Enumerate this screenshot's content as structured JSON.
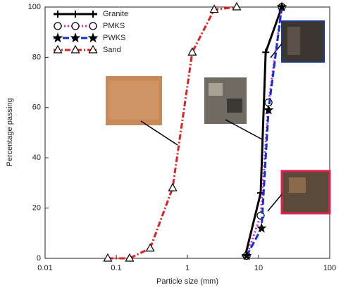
{
  "chart_data": {
    "type": "line",
    "x_label": "Particle size (mm)",
    "y_label": "Percentage passing",
    "xscale": "log",
    "xlim": [
      0.01,
      100
    ],
    "xticks": [
      0.01,
      0.1,
      1,
      10,
      100
    ],
    "ylim": [
      0,
      100
    ],
    "yticks": [
      0,
      20,
      40,
      60,
      80,
      100
    ],
    "legend": "upper left",
    "series": [
      {
        "name": "Granite",
        "color": "#000000",
        "line_style": "solid",
        "marker": "plus",
        "x": [
          6.5,
          10.7,
          12.6,
          21.2
        ],
        "values": [
          1,
          26,
          82,
          100
        ]
      },
      {
        "name": "PMKS",
        "color": "#e020e0",
        "line_style": "dotted",
        "marker": "circle",
        "x": [
          6.8,
          10.7,
          13.8,
          21.2
        ],
        "values": [
          1,
          17,
          62,
          100
        ]
      },
      {
        "name": "PWKS",
        "color": "#1030d0",
        "line_style": "dashed",
        "marker": "star",
        "x": [
          6.8,
          11.0,
          13.8,
          21.2
        ],
        "values": [
          1,
          12,
          59,
          100
        ]
      },
      {
        "name": "Sand",
        "color": "#e02020",
        "line_style": "dashdot",
        "marker": "triangle",
        "x": [
          0.076,
          0.154,
          0.3,
          0.62,
          1.17,
          2.38,
          4.93
        ],
        "values": [
          0,
          0,
          4,
          28,
          82,
          99,
          100
        ]
      }
    ]
  }
}
